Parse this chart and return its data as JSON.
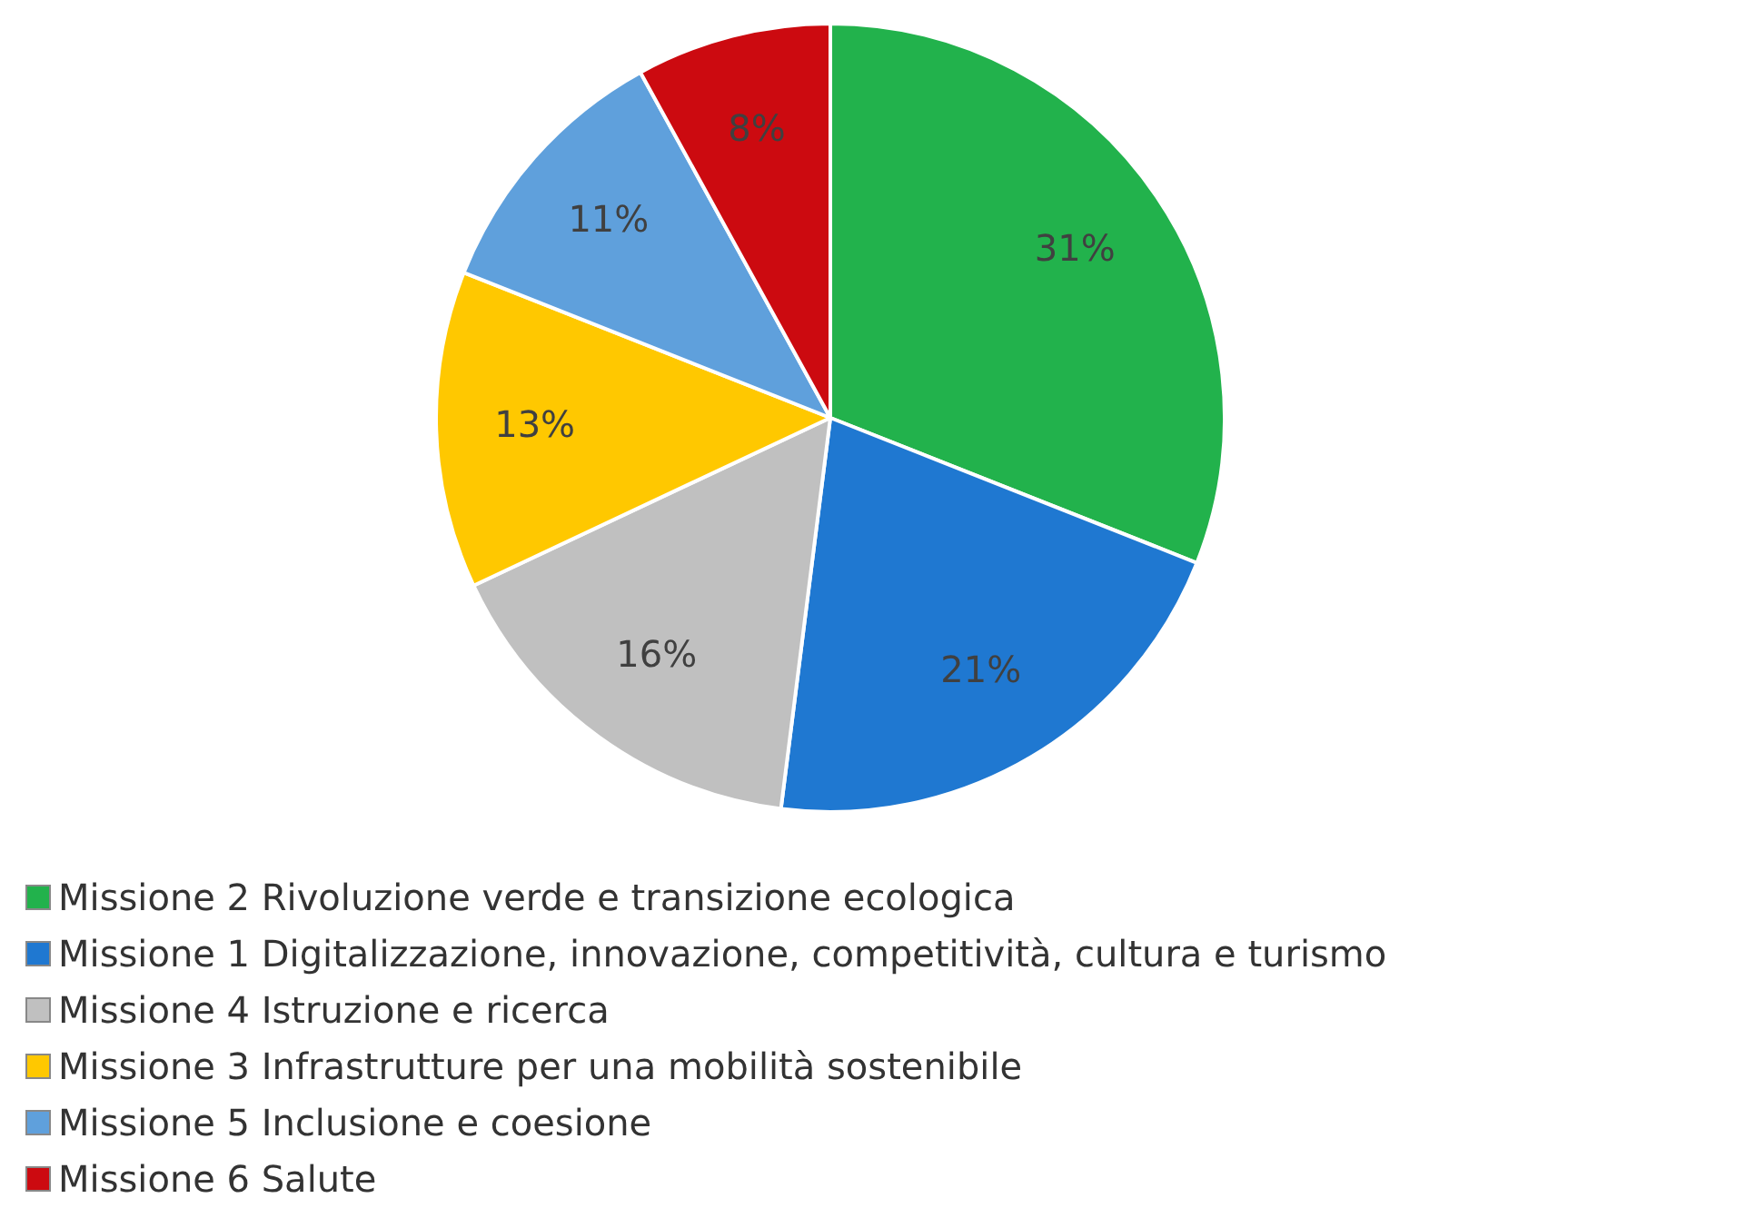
{
  "chart_data": {
    "type": "pie",
    "categories": [
      "Missione 2 Rivoluzione verde e transizione ecologica",
      "Missione 1 Digitalizzazione, innovazione, competitività, cultura e turismo",
      "Missione 4 Istruzione e ricerca",
      "Missione 3 Infrastrutture per una mobilità sostenibile",
      "Missione 5 Inclusione e coesione",
      "Missione 6 Salute"
    ],
    "values": [
      31,
      21,
      16,
      13,
      11,
      8
    ],
    "colors": [
      "#22b24c",
      "#1f78d1",
      "#c0c0c0",
      "#ffc800",
      "#5fa0dc",
      "#cc0a10"
    ],
    "value_labels": [
      "31%",
      "21%",
      "16%",
      "13%",
      "11%",
      "8%"
    ],
    "legend": "bottom"
  }
}
